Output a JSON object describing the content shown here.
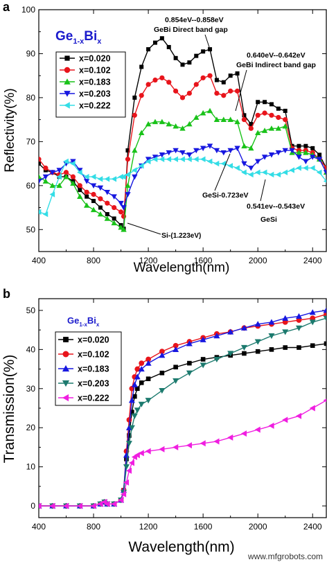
{
  "watermark": "www.mfgrobots.com",
  "chart_data": [
    {
      "panel": "a",
      "type": "line",
      "xlabel": "Wavelength(nm)",
      "ylabel": "Reflectivity(%)",
      "xlim": [
        400,
        2500
      ],
      "ylim": [
        45,
        100
      ],
      "xticks": [
        400,
        800,
        1200,
        1600,
        2000,
        2400
      ],
      "yticks": [
        50,
        60,
        70,
        80,
        90,
        100
      ],
      "legend_title": {
        "base": "Ge",
        "sub1": "1-x",
        "mid": "Bi",
        "sub2": "x"
      },
      "legend_position": "top-left",
      "series": [
        {
          "name": "x=0.020",
          "color": "#000000",
          "marker": "square",
          "x": [
            400,
            450,
            500,
            550,
            600,
            650,
            700,
            750,
            800,
            850,
            900,
            950,
            1000,
            1020,
            1050,
            1100,
            1150,
            1200,
            1250,
            1300,
            1350,
            1400,
            1450,
            1500,
            1550,
            1600,
            1650,
            1700,
            1750,
            1800,
            1850,
            1900,
            1950,
            2000,
            2050,
            2100,
            2150,
            2200,
            2250,
            2300,
            2350,
            2400,
            2450,
            2500
          ],
          "y": [
            65,
            63.5,
            63,
            62,
            62,
            61,
            59,
            57.5,
            56.5,
            55,
            53.5,
            52.5,
            51,
            50.2,
            68,
            80,
            87,
            91,
            92.5,
            93.5,
            91.5,
            89,
            87.5,
            88,
            89.5,
            90.5,
            91,
            84,
            83.5,
            85,
            85.5,
            76,
            74,
            79,
            79,
            78.5,
            77.5,
            77,
            69,
            69,
            69,
            68.5,
            67,
            64
          ]
        },
        {
          "name": "x=0.102",
          "color": "#e8141b",
          "marker": "circle",
          "x": [
            400,
            450,
            500,
            550,
            600,
            650,
            700,
            750,
            800,
            850,
            900,
            950,
            1000,
            1020,
            1050,
            1100,
            1150,
            1200,
            1250,
            1300,
            1350,
            1400,
            1450,
            1500,
            1550,
            1600,
            1650,
            1700,
            1750,
            1800,
            1850,
            1900,
            1950,
            2000,
            2050,
            2100,
            2150,
            2200,
            2250,
            2300,
            2350,
            2400,
            2450,
            2500
          ],
          "y": [
            66,
            64,
            63,
            62.5,
            63,
            62,
            60,
            58.5,
            58,
            57,
            56,
            55,
            54,
            53,
            66,
            76,
            80.5,
            83,
            84,
            84.5,
            83.5,
            81.5,
            80,
            81,
            83,
            84.5,
            85,
            81,
            80.5,
            81.5,
            81.5,
            75,
            73,
            76,
            76.5,
            76,
            75.5,
            75,
            68.5,
            68,
            68,
            67.5,
            66,
            64
          ]
        },
        {
          "name": "x=0.183",
          "color": "#19c219",
          "marker": "triangle-up",
          "x": [
            400,
            450,
            500,
            550,
            600,
            650,
            700,
            750,
            800,
            850,
            900,
            950,
            1000,
            1020,
            1050,
            1100,
            1150,
            1200,
            1250,
            1300,
            1350,
            1400,
            1450,
            1500,
            1550,
            1600,
            1650,
            1700,
            1750,
            1800,
            1850,
            1900,
            1950,
            2000,
            2050,
            2100,
            2150,
            2200,
            2250,
            2300,
            2350,
            2400,
            2450,
            2500
          ],
          "y": [
            62,
            61,
            60,
            60,
            62,
            60.5,
            57.5,
            55.5,
            54.5,
            53.5,
            52.5,
            51.5,
            50.5,
            50,
            60,
            68,
            72,
            74,
            74.5,
            74.5,
            74,
            73.5,
            73,
            74,
            75.5,
            76.5,
            77,
            75,
            75,
            75,
            74.5,
            69,
            68.5,
            72,
            72.5,
            73,
            73,
            73.5,
            67.5,
            67.5,
            67.5,
            67,
            66,
            63
          ]
        },
        {
          "name": "x=0.203",
          "color": "#1717e0",
          "marker": "triangle-down",
          "x": [
            400,
            450,
            500,
            550,
            600,
            650,
            700,
            750,
            800,
            850,
            900,
            950,
            1000,
            1020,
            1050,
            1100,
            1150,
            1200,
            1250,
            1300,
            1350,
            1400,
            1450,
            1500,
            1550,
            1600,
            1650,
            1700,
            1750,
            1800,
            1850,
            1900,
            1950,
            2000,
            2050,
            2100,
            2150,
            2200,
            2250,
            2300,
            2350,
            2400,
            2450,
            2500
          ],
          "y": [
            61,
            62,
            63,
            63.5,
            65,
            65.5,
            63.5,
            61,
            60,
            59.5,
            58.5,
            57.5,
            56,
            55,
            58,
            62,
            64.5,
            66,
            66.5,
            67,
            67.5,
            68,
            67.5,
            67,
            68,
            68.5,
            69,
            68,
            67.5,
            68,
            68.5,
            65,
            64,
            65.5,
            66.5,
            67,
            67.5,
            68,
            68,
            66.5,
            65.5,
            66.5,
            66,
            63
          ]
        },
        {
          "name": "x=0.222",
          "color": "#33dde6",
          "marker": "triangle-left",
          "x": [
            400,
            450,
            500,
            550,
            600,
            650,
            700,
            750,
            800,
            850,
            900,
            950,
            1000,
            1020,
            1050,
            1100,
            1150,
            1200,
            1250,
            1300,
            1350,
            1400,
            1450,
            1500,
            1550,
            1600,
            1650,
            1700,
            1750,
            1800,
            1850,
            1900,
            1950,
            2000,
            2050,
            2100,
            2150,
            2200,
            2250,
            2300,
            2350,
            2400,
            2450,
            2500
          ],
          "y": [
            54,
            53.5,
            58,
            62,
            65.5,
            65,
            63,
            62,
            62,
            61.5,
            61.5,
            61.5,
            62,
            62,
            62.5,
            63.5,
            64.5,
            65.5,
            66,
            66,
            66,
            66,
            66,
            66,
            66,
            66,
            65.5,
            65,
            65,
            64.5,
            64,
            63,
            62.5,
            63,
            63,
            62.5,
            62.5,
            63,
            63.5,
            64,
            64,
            64,
            63,
            61
          ]
        }
      ],
      "annotations": [
        {
          "text": "0.854eV--0.858eV",
          "style": "small"
        },
        {
          "text": "GeBi Direct band gap",
          "style": "small"
        },
        {
          "text": "0.640eV--0.642eV",
          "style": "small"
        },
        {
          "text": "GeBi Indirect band gap",
          "style": "small"
        },
        {
          "text": "GeSi-0.723eV",
          "style": "small"
        },
        {
          "text": "0.541ev--0.543eV",
          "style": "small"
        },
        {
          "text": "GeSi",
          "style": "small"
        },
        {
          "text_main": "Si-",
          "text_paren": "(1.223eV)"
        }
      ]
    },
    {
      "panel": "b",
      "type": "line",
      "xlabel": "Wavelength(nm)",
      "ylabel": "Transmission(%)",
      "xlim": [
        400,
        2500
      ],
      "ylim": [
        -3,
        53
      ],
      "xticks": [
        400,
        800,
        1200,
        1600,
        2000,
        2400
      ],
      "yticks": [
        0,
        10,
        20,
        30,
        40,
        50
      ],
      "legend_title": {
        "base": "Ge",
        "sub1": "1-x",
        "mid": "Bi",
        "sub2": "x"
      },
      "legend_position": "top-left",
      "series": [
        {
          "name": "x=0.020",
          "color": "#000000",
          "marker": "square",
          "x": [
            400,
            500,
            600,
            700,
            800,
            850,
            880,
            900,
            950,
            1000,
            1020,
            1040,
            1060,
            1080,
            1100,
            1120,
            1150,
            1200,
            1300,
            1400,
            1500,
            1600,
            1700,
            1800,
            1900,
            2000,
            2100,
            2200,
            2300,
            2400,
            2500
          ],
          "y": [
            0,
            0,
            0,
            0,
            0,
            0.5,
            1,
            0.5,
            0.5,
            1.5,
            4,
            12,
            18,
            24,
            28,
            30,
            31.5,
            32.5,
            34,
            35.5,
            36.5,
            37.5,
            38,
            38.5,
            39,
            39.5,
            40,
            40.5,
            40.5,
            41,
            41.5
          ]
        },
        {
          "name": "x=0.102",
          "color": "#e8141b",
          "marker": "circle",
          "x": [
            400,
            500,
            600,
            700,
            800,
            850,
            880,
            900,
            950,
            1000,
            1020,
            1040,
            1060,
            1080,
            1100,
            1120,
            1150,
            1200,
            1300,
            1400,
            1500,
            1600,
            1700,
            1800,
            1900,
            2000,
            2100,
            2200,
            2300,
            2400,
            2500
          ],
          "y": [
            0,
            0,
            0,
            0,
            0,
            0.5,
            1,
            0.5,
            0.5,
            1.5,
            4,
            14,
            22,
            30,
            33,
            35,
            36.5,
            37.5,
            39.5,
            41,
            42,
            43,
            44,
            44.5,
            45.5,
            46,
            46.5,
            47,
            47.5,
            48,
            49
          ]
        },
        {
          "name": "x=0.183",
          "color": "#1717e0",
          "marker": "triangle-up",
          "x": [
            400,
            500,
            600,
            700,
            800,
            850,
            880,
            900,
            950,
            1000,
            1020,
            1040,
            1060,
            1080,
            1100,
            1120,
            1150,
            1200,
            1300,
            1400,
            1500,
            1600,
            1700,
            1800,
            1900,
            2000,
            2100,
            2200,
            2300,
            2400,
            2500
          ],
          "y": [
            0,
            0,
            0,
            0,
            0,
            0.5,
            1,
            0.5,
            0.5,
            1.5,
            4,
            13,
            20,
            27,
            31,
            33,
            35,
            36.5,
            38.5,
            40,
            41.5,
            42.5,
            43.5,
            44.5,
            45.5,
            46.5,
            47,
            48,
            48.5,
            49.5,
            50
          ]
        },
        {
          "name": "x=0.203",
          "color": "#1c7a6e",
          "marker": "triangle-down",
          "x": [
            400,
            500,
            600,
            700,
            800,
            850,
            880,
            900,
            950,
            1000,
            1020,
            1040,
            1060,
            1080,
            1100,
            1120,
            1150,
            1200,
            1300,
            1400,
            1500,
            1600,
            1700,
            1800,
            1900,
            2000,
            2100,
            2200,
            2300,
            2400,
            2500
          ],
          "y": [
            0,
            0,
            0,
            0,
            0,
            0.5,
            1,
            0.5,
            0.5,
            1.5,
            3.5,
            10,
            16,
            20,
            23,
            24.5,
            26,
            27,
            29.5,
            32,
            34,
            36,
            37.5,
            39,
            40.5,
            42,
            43.5,
            44.5,
            45.5,
            47,
            48
          ]
        },
        {
          "name": "x=0.222",
          "color": "#f01ee0",
          "marker": "triangle-left",
          "x": [
            400,
            500,
            600,
            700,
            800,
            850,
            880,
            900,
            950,
            1000,
            1020,
            1040,
            1060,
            1080,
            1100,
            1120,
            1150,
            1200,
            1300,
            1400,
            1500,
            1600,
            1700,
            1800,
            1900,
            2000,
            2100,
            2200,
            2300,
            2400,
            2500
          ],
          "y": [
            0,
            0,
            0,
            0,
            0,
            0.5,
            1,
            0.5,
            0.5,
            1.5,
            3,
            6,
            9,
            11,
            12.5,
            13,
            13.5,
            14,
            14.5,
            15,
            15.5,
            16,
            16.5,
            17.5,
            18.5,
            19.5,
            20.5,
            22,
            23,
            25,
            27
          ]
        }
      ]
    }
  ]
}
